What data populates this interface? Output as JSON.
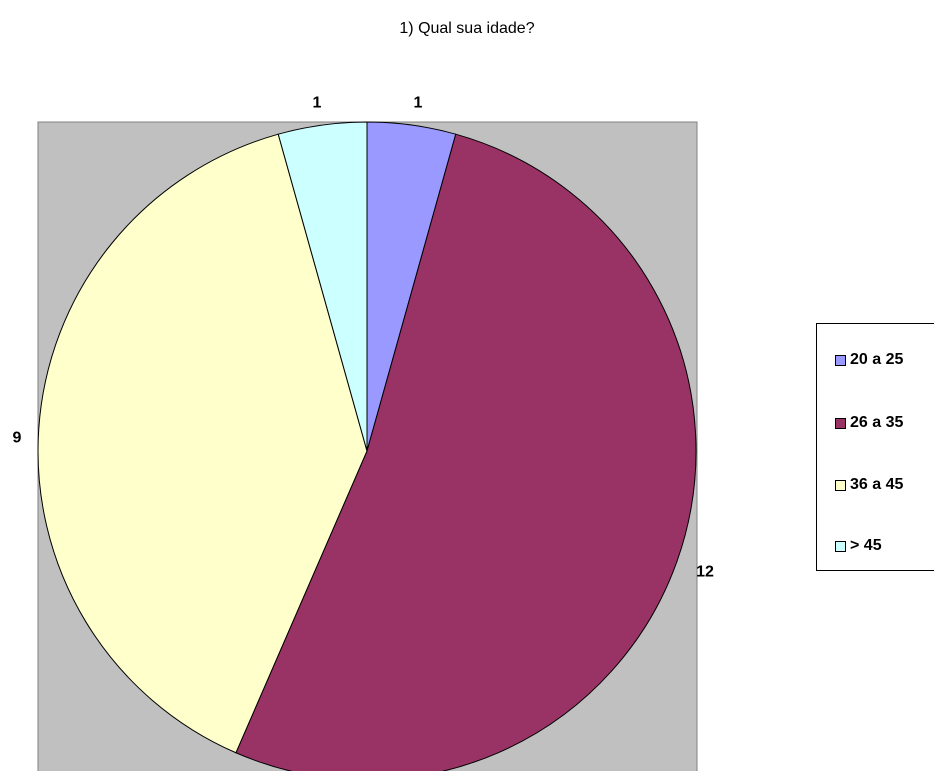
{
  "chart_data": {
    "type": "pie",
    "title": "1) Qual sua idade?",
    "categories": [
      "20 a 25",
      "26 a 35",
      "36 a 45",
      "> 45"
    ],
    "values": [
      1,
      12,
      9,
      1
    ],
    "colors": [
      "#9999ff",
      "#993366",
      "#ffffcc",
      "#ccffff"
    ],
    "plot_background": "#c0c0c0",
    "legend": "right",
    "data_labels": [
      "1",
      "12",
      "9",
      "1"
    ]
  }
}
